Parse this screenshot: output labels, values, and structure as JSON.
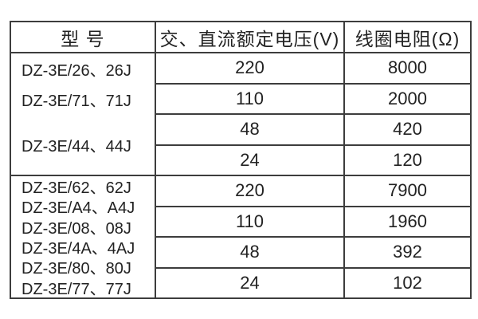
{
  "page": {
    "background_color": "#ffffff",
    "border_color": "#3d3d3d",
    "text_color": "#222222"
  },
  "table": {
    "headers": {
      "model": "型 号",
      "voltage": "交、直流额定电压(V)",
      "resistance": "线圈电阻(Ω)"
    },
    "groups": [
      {
        "models": [
          "DZ-3E/26、26J",
          "DZ-3E/71、71J",
          "DZ-3E/44、44J"
        ],
        "rows": [
          {
            "voltage": "220",
            "resistance": "8000"
          },
          {
            "voltage": "110",
            "resistance": "2000"
          },
          {
            "voltage": "48",
            "resistance": "420"
          },
          {
            "voltage": "24",
            "resistance": "120"
          }
        ]
      },
      {
        "models": [
          "DZ-3E/62、62J",
          "DZ-3E/A4、A4J",
          "DZ-3E/08、08J",
          "DZ-3E/4A、4AJ",
          "DZ-3E/80、80J",
          "DZ-3E/77、77J"
        ],
        "rows": [
          {
            "voltage": "220",
            "resistance": "7900"
          },
          {
            "voltage": "110",
            "resistance": "1960"
          },
          {
            "voltage": "48",
            "resistance": "392"
          },
          {
            "voltage": "24",
            "resistance": "102"
          }
        ]
      }
    ]
  }
}
